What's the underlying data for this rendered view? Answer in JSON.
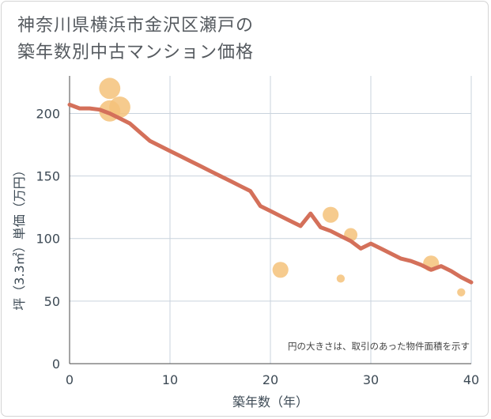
{
  "title_line1": "神奈川県横浜市金沢区瀬戸の",
  "title_line2": "築年数別中古マンション価格",
  "chart_data": {
    "type": "scatter",
    "title": "神奈川県横浜市金沢区瀬戸の築年数別中古マンション価格",
    "xlabel": "築年数（年）",
    "ylabel": "坪（3.3㎡）単価（万円）",
    "xlim": [
      0,
      40
    ],
    "ylim": [
      0,
      230
    ],
    "x_ticks": [
      0,
      10,
      20,
      30,
      40
    ],
    "y_ticks": [
      0,
      50,
      100,
      150,
      200
    ],
    "grid": true,
    "note": "円の大きさは、取引のあった物件面積を示す",
    "bubble_color": "#f5c27a",
    "line_color": "#d4705a",
    "points": [
      {
        "x": 4,
        "y": 220,
        "size": 3
      },
      {
        "x": 5,
        "y": 205,
        "size": 3
      },
      {
        "x": 4,
        "y": 202,
        "size": 3
      },
      {
        "x": 21,
        "y": 75,
        "size": 2
      },
      {
        "x": 26,
        "y": 119,
        "size": 2
      },
      {
        "x": 27,
        "y": 68,
        "size": 0.5
      },
      {
        "x": 28,
        "y": 103,
        "size": 1.5
      },
      {
        "x": 36,
        "y": 80,
        "size": 2
      },
      {
        "x": 39,
        "y": 57,
        "size": 0.5
      }
    ],
    "trend": {
      "name": "",
      "x": [
        0,
        1,
        2,
        3,
        4,
        5,
        6,
        7,
        8,
        9,
        10,
        11,
        12,
        13,
        14,
        15,
        16,
        17,
        18,
        19,
        20,
        21,
        22,
        23,
        24,
        25,
        26,
        27,
        28,
        29,
        30,
        31,
        32,
        33,
        34,
        35,
        36,
        37,
        38,
        39,
        40
      ],
      "y": [
        207,
        204,
        204,
        203,
        200,
        196,
        192,
        185,
        178,
        174,
        170,
        166,
        162,
        158,
        154,
        150,
        146,
        142,
        138,
        126,
        122,
        118,
        114,
        110,
        120,
        109,
        106,
        102,
        98,
        92,
        96,
        92,
        88,
        84,
        82,
        79,
        75,
        78,
        74,
        69,
        65
      ]
    }
  }
}
